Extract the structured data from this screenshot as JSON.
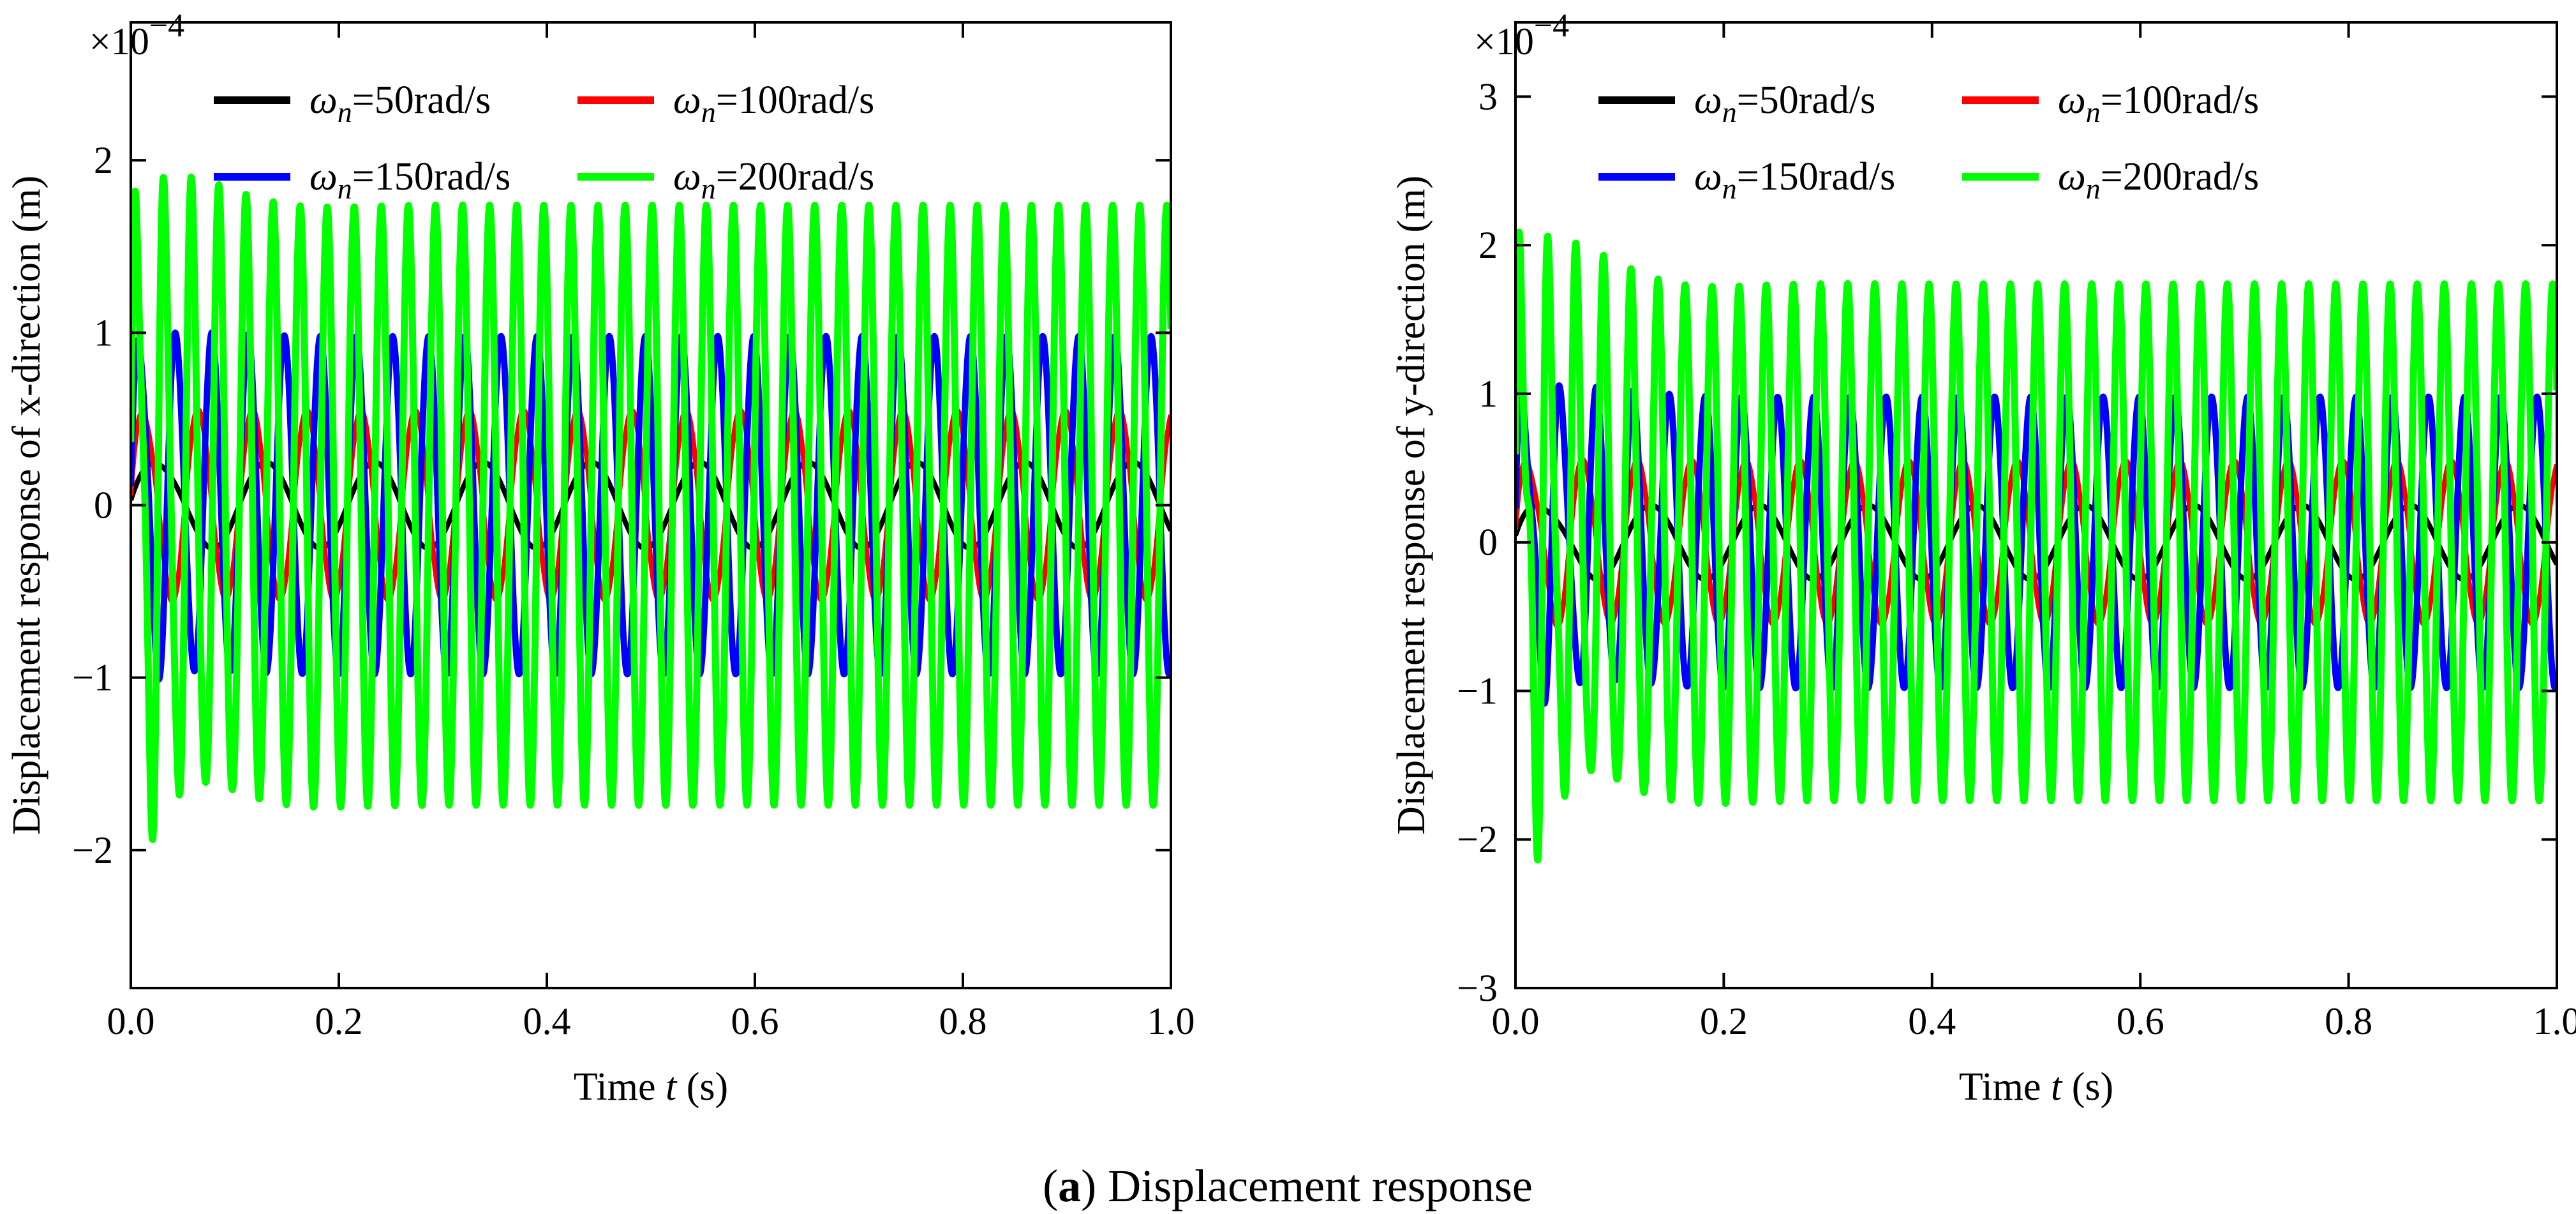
{
  "figure": {
    "caption_prefix": "(",
    "caption_letter": "a",
    "caption_suffix": ") Displacement response"
  },
  "chart_data": [
    {
      "type": "line",
      "panel": "left",
      "xlabel_prefix": "Time ",
      "xlabel_var": "t",
      "xlabel_unit": " (s)",
      "ylabel": "Displacement response of x-direction (m)",
      "y_multiplier_base": "×10",
      "y_multiplier_exp": "−4",
      "xlim": [
        0,
        1.0
      ],
      "ylim": [
        -2.8,
        2.8
      ],
      "xticks": [
        0.0,
        0.2,
        0.4,
        0.6,
        0.8,
        1.0
      ],
      "xtick_labels": [
        "0.0",
        "0.2",
        "0.4",
        "0.6",
        "0.8",
        "1.0"
      ],
      "yticks": [
        -2,
        -1,
        0,
        1,
        2
      ],
      "ytick_labels": [
        "−2",
        "−1",
        "0",
        "1",
        "2"
      ],
      "legend_position": "top",
      "series": [
        {
          "name_sym": "ω",
          "name_sub": "n",
          "name_rest": "=50rad/s",
          "color": "#000000",
          "amplitude": 0.25,
          "frequency_hz": 9.6,
          "transient": 0.05,
          "transient_decay": 0.04
        },
        {
          "name_sym": "ω",
          "name_sub": "n",
          "name_rest": "=100rad/s",
          "color": "#ff0000",
          "amplitude": 0.55,
          "frequency_hz": 19.2,
          "transient": 0.1,
          "transient_decay": 0.04
        },
        {
          "name_sym": "ω",
          "name_sub": "n",
          "name_rest": "=150rad/s",
          "color": "#0000ff",
          "amplitude": 0.98,
          "frequency_hz": 28.8,
          "transient": 0.2,
          "transient_decay": 0.04
        },
        {
          "name_sym": "ω",
          "name_sub": "n",
          "name_rest": "=200rad/s",
          "color": "#00ff00",
          "amplitude": 1.74,
          "frequency_hz": 38.4,
          "transient": 0.65,
          "transient_decay": 0.05
        }
      ]
    },
    {
      "type": "line",
      "panel": "right",
      "xlabel_prefix": "Time ",
      "xlabel_var": "t",
      "xlabel_unit": " (s)",
      "ylabel": "Displacement response of y-direction (m)",
      "y_multiplier_base": "×10",
      "y_multiplier_exp": "−4",
      "xlim": [
        0,
        1.0
      ],
      "ylim": [
        -3,
        3.5
      ],
      "xticks": [
        0.0,
        0.2,
        0.4,
        0.6,
        0.8,
        1.0
      ],
      "xtick_labels": [
        "0.0",
        "0.2",
        "0.4",
        "0.6",
        "0.8",
        "1.0"
      ],
      "yticks": [
        -3,
        -2,
        -1,
        0,
        1,
        2,
        3
      ],
      "ytick_labels": [
        "−3",
        "−2",
        "−1",
        "0",
        "1",
        "2",
        "3"
      ],
      "legend_position": "top",
      "series": [
        {
          "name_sym": "ω",
          "name_sub": "n",
          "name_rest": "=50rad/s",
          "color": "#000000",
          "amplitude": 0.25,
          "frequency_hz": 9.6,
          "transient": 0.08,
          "transient_decay": 0.04
        },
        {
          "name_sym": "ω",
          "name_sub": "n",
          "name_rest": "=100rad/s",
          "color": "#ff0000",
          "amplitude": 0.55,
          "frequency_hz": 19.2,
          "transient": 0.15,
          "transient_decay": 0.04
        },
        {
          "name_sym": "ω",
          "name_sub": "n",
          "name_rest": "=150rad/s",
          "color": "#0000ff",
          "amplitude": 0.98,
          "frequency_hz": 28.8,
          "transient": 0.4,
          "transient_decay": 0.05
        },
        {
          "name_sym": "ω",
          "name_sub": "n",
          "name_rest": "=200rad/s",
          "color": "#00ff00",
          "amplitude": 1.74,
          "frequency_hz": 38.4,
          "transient": 1.05,
          "transient_decay": 0.05
        }
      ]
    }
  ]
}
